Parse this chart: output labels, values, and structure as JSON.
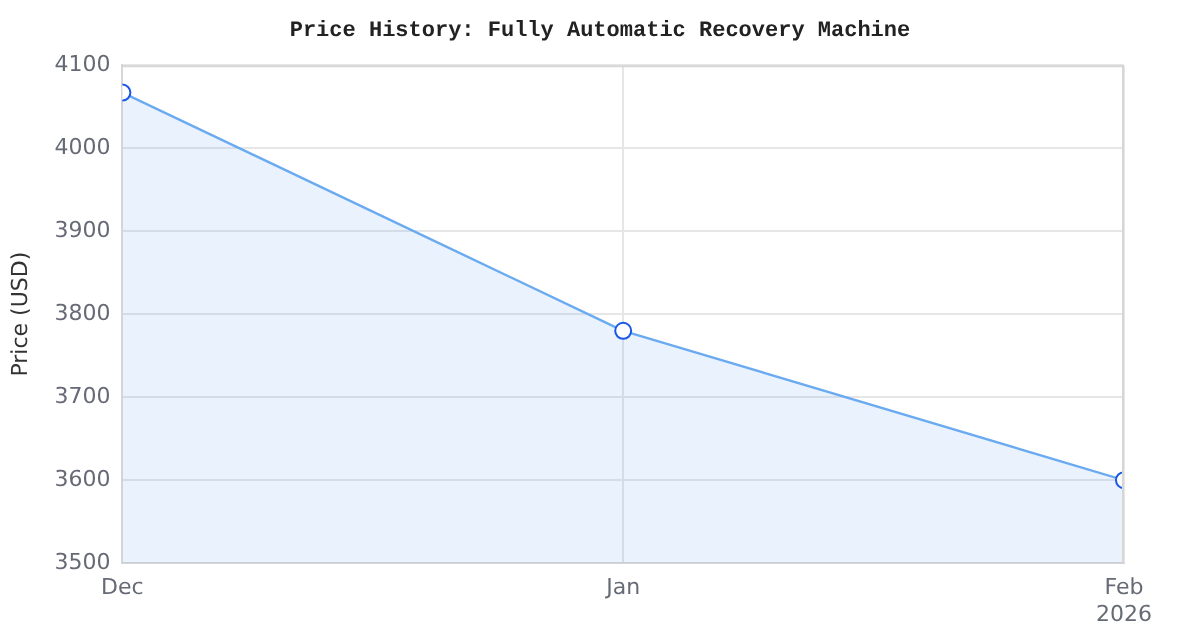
{
  "chart_data": {
    "type": "area",
    "title": "Price History: Fully Automatic Recovery Machine",
    "ylabel": "Price (USD)",
    "x": [
      "2025-12-01",
      "2026-01-01",
      "2026-02-01"
    ],
    "series": [
      {
        "color": "#6aaaf0",
        "values": [
          4067,
          3780,
          3600
        ]
      }
    ],
    "xlim": [
      "2025-12-01",
      "2026-02-01"
    ],
    "xticks": [
      {
        "value": "2025-12-01",
        "label": "Dec"
      },
      {
        "value": "2026-01-01",
        "label": "Jan"
      },
      {
        "value": "2026-02-01",
        "label": "Feb\n2026"
      }
    ],
    "ylim": [
      3500,
      4100
    ],
    "yticks": [
      3500,
      3600,
      3700,
      3800,
      3900,
      4000,
      4100
    ],
    "grid": true,
    "legend": false,
    "marker": "circle",
    "line_style": "solid"
  }
}
